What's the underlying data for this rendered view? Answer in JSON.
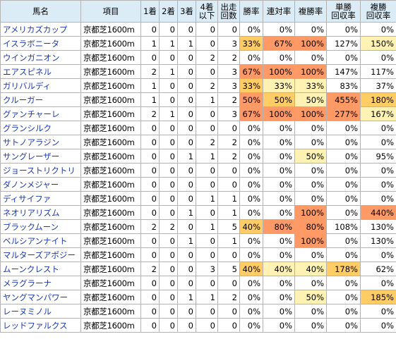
{
  "headers": [
    "馬名",
    "項目",
    "1着",
    "2着",
    "3着",
    "4着以下",
    "出走回数",
    "勝率",
    "連対率",
    "複勝率",
    "単勝回収率",
    "複勝回収率"
  ],
  "header_lines": [
    [
      "馬名"
    ],
    [
      "項目"
    ],
    [
      "1着"
    ],
    [
      "2着"
    ],
    [
      "3着"
    ],
    [
      "4着",
      "以下"
    ],
    [
      "出走",
      "回数"
    ],
    [
      "勝率"
    ],
    [
      "連対率"
    ],
    [
      "複勝率"
    ],
    [
      "単勝",
      "回収率"
    ],
    [
      "複勝",
      "回収率"
    ]
  ],
  "highlight_colors": {
    "strong": "#ff9966",
    "mid": "#ffcc66",
    "light": "#fff2b3"
  },
  "rows": [
    {
      "name": "アメリカズカップ",
      "course": "京都芝1600m",
      "c1": "0",
      "c2": "0",
      "c3": "0",
      "c4": "0",
      "runs": "0",
      "win": "0%",
      "ren": "0%",
      "fuku": "0%",
      "tan_ret": "0%",
      "fuku_ret": "0%",
      "hl": [
        "",
        "",
        "",
        "",
        ""
      ]
    },
    {
      "name": "イスラボニータ",
      "course": "京都芝1600m",
      "c1": "1",
      "c2": "1",
      "c3": "1",
      "c4": "0",
      "runs": "3",
      "win": "33%",
      "ren": "67%",
      "fuku": "100%",
      "tan_ret": "127%",
      "fuku_ret": "150%",
      "hl": [
        "mid",
        "strong",
        "strong",
        "",
        "light"
      ]
    },
    {
      "name": "ウインガニオン",
      "course": "京都芝1600m",
      "c1": "0",
      "c2": "0",
      "c3": "0",
      "c4": "2",
      "runs": "2",
      "win": "0%",
      "ren": "0%",
      "fuku": "0%",
      "tan_ret": "0%",
      "fuku_ret": "0%",
      "hl": [
        "",
        "",
        "",
        "",
        ""
      ]
    },
    {
      "name": "エアスピネル",
      "course": "京都芝1600m",
      "c1": "2",
      "c2": "1",
      "c3": "0",
      "c4": "0",
      "runs": "3",
      "win": "67%",
      "ren": "100%",
      "fuku": "100%",
      "tan_ret": "147%",
      "fuku_ret": "117%",
      "hl": [
        "strong",
        "strong",
        "strong",
        "",
        ""
      ]
    },
    {
      "name": "ガリバルディ",
      "course": "京都芝1600m",
      "c1": "1",
      "c2": "0",
      "c3": "0",
      "c4": "2",
      "runs": "3",
      "win": "33%",
      "ren": "33%",
      "fuku": "33%",
      "tan_ret": "83%",
      "fuku_ret": "37%",
      "hl": [
        "mid",
        "light",
        "light",
        "",
        ""
      ]
    },
    {
      "name": "クルーガー",
      "course": "京都芝1600m",
      "c1": "1",
      "c2": "0",
      "c3": "0",
      "c4": "1",
      "runs": "2",
      "win": "50%",
      "ren": "50%",
      "fuku": "50%",
      "tan_ret": "455%",
      "fuku_ret": "180%",
      "hl": [
        "strong",
        "mid",
        "light",
        "strong",
        "mid"
      ]
    },
    {
      "name": "グァンチャーレ",
      "course": "京都芝1600m",
      "c1": "2",
      "c2": "1",
      "c3": "0",
      "c4": "0",
      "runs": "3",
      "win": "67%",
      "ren": "100%",
      "fuku": "100%",
      "tan_ret": "277%",
      "fuku_ret": "167%",
      "hl": [
        "strong",
        "strong",
        "strong",
        "strong",
        "light"
      ]
    },
    {
      "name": "グランシルク",
      "course": "京都芝1600m",
      "c1": "0",
      "c2": "0",
      "c3": "0",
      "c4": "0",
      "runs": "0",
      "win": "0%",
      "ren": "0%",
      "fuku": "0%",
      "tan_ret": "0%",
      "fuku_ret": "0%",
      "hl": [
        "",
        "",
        "",
        "",
        ""
      ]
    },
    {
      "name": "サトノアラジン",
      "course": "京都芝1600m",
      "c1": "0",
      "c2": "0",
      "c3": "0",
      "c4": "2",
      "runs": "2",
      "win": "0%",
      "ren": "0%",
      "fuku": "0%",
      "tan_ret": "0%",
      "fuku_ret": "0%",
      "hl": [
        "",
        "",
        "",
        "",
        ""
      ]
    },
    {
      "name": "サングレーザー",
      "course": "京都芝1600m",
      "c1": "0",
      "c2": "0",
      "c3": "1",
      "c4": "1",
      "runs": "2",
      "win": "0%",
      "ren": "0%",
      "fuku": "50%",
      "tan_ret": "0%",
      "fuku_ret": "95%",
      "hl": [
        "",
        "",
        "light",
        "",
        ""
      ]
    },
    {
      "name": "ジョーストリクトリ",
      "course": "京都芝1600m",
      "c1": "0",
      "c2": "0",
      "c3": "0",
      "c4": "0",
      "runs": "0",
      "win": "0%",
      "ren": "0%",
      "fuku": "0%",
      "tan_ret": "0%",
      "fuku_ret": "0%",
      "hl": [
        "",
        "",
        "",
        "",
        ""
      ]
    },
    {
      "name": "ダノンメジャー",
      "course": "京都芝1600m",
      "c1": "0",
      "c2": "0",
      "c3": "0",
      "c4": "0",
      "runs": "0",
      "win": "0%",
      "ren": "0%",
      "fuku": "0%",
      "tan_ret": "0%",
      "fuku_ret": "0%",
      "hl": [
        "",
        "",
        "",
        "",
        ""
      ]
    },
    {
      "name": "ディサイファ",
      "course": "京都芝1600m",
      "c1": "0",
      "c2": "0",
      "c3": "0",
      "c4": "1",
      "runs": "1",
      "win": "0%",
      "ren": "0%",
      "fuku": "0%",
      "tan_ret": "0%",
      "fuku_ret": "0%",
      "hl": [
        "",
        "",
        "",
        "",
        ""
      ]
    },
    {
      "name": "ネオリアリズム",
      "course": "京都芝1600m",
      "c1": "0",
      "c2": "0",
      "c3": "1",
      "c4": "0",
      "runs": "1",
      "win": "0%",
      "ren": "0%",
      "fuku": "100%",
      "tan_ret": "0%",
      "fuku_ret": "440%",
      "hl": [
        "",
        "",
        "strong",
        "",
        "strong"
      ]
    },
    {
      "name": "ブラックムーン",
      "course": "京都芝1600m",
      "c1": "2",
      "c2": "2",
      "c3": "0",
      "c4": "1",
      "runs": "5",
      "win": "40%",
      "ren": "80%",
      "fuku": "80%",
      "tan_ret": "108%",
      "fuku_ret": "130%",
      "hl": [
        "mid",
        "strong",
        "strong",
        "",
        ""
      ]
    },
    {
      "name": "ベルシアンナイト",
      "course": "京都芝1600m",
      "c1": "0",
      "c2": "0",
      "c3": "1",
      "c4": "0",
      "runs": "1",
      "win": "0%",
      "ren": "0%",
      "fuku": "100%",
      "tan_ret": "0%",
      "fuku_ret": "130%",
      "hl": [
        "",
        "",
        "strong",
        "",
        ""
      ]
    },
    {
      "name": "マルターズアポジー",
      "course": "京都芝1600m",
      "c1": "0",
      "c2": "0",
      "c3": "0",
      "c4": "0",
      "runs": "0",
      "win": "0%",
      "ren": "0%",
      "fuku": "0%",
      "tan_ret": "0%",
      "fuku_ret": "0%",
      "hl": [
        "",
        "",
        "",
        "",
        ""
      ]
    },
    {
      "name": "ムーンクレスト",
      "course": "京都芝1600m",
      "c1": "2",
      "c2": "0",
      "c3": "0",
      "c4": "3",
      "runs": "5",
      "win": "40%",
      "ren": "40%",
      "fuku": "40%",
      "tan_ret": "178%",
      "fuku_ret": "62%",
      "hl": [
        "mid",
        "light",
        "light",
        "mid",
        ""
      ]
    },
    {
      "name": "メラグラーナ",
      "course": "京都芝1600m",
      "c1": "0",
      "c2": "0",
      "c3": "0",
      "c4": "0",
      "runs": "0",
      "win": "0%",
      "ren": "0%",
      "fuku": "0%",
      "tan_ret": "0%",
      "fuku_ret": "0%",
      "hl": [
        "",
        "",
        "",
        "",
        ""
      ]
    },
    {
      "name": "ヤングマンパワー",
      "course": "京都芝1600m",
      "c1": "0",
      "c2": "0",
      "c3": "1",
      "c4": "1",
      "runs": "2",
      "win": "0%",
      "ren": "0%",
      "fuku": "50%",
      "tan_ret": "0%",
      "fuku_ret": "185%",
      "hl": [
        "",
        "",
        "light",
        "",
        "mid"
      ]
    },
    {
      "name": "レーヌミノル",
      "course": "京都芝1600m",
      "c1": "0",
      "c2": "0",
      "c3": "0",
      "c4": "0",
      "runs": "0",
      "win": "0%",
      "ren": "0%",
      "fuku": "0%",
      "tan_ret": "0%",
      "fuku_ret": "0%",
      "hl": [
        "",
        "",
        "",
        "",
        ""
      ]
    },
    {
      "name": "レッドファルクス",
      "course": "京都芝1600m",
      "c1": "0",
      "c2": "0",
      "c3": "0",
      "c4": "0",
      "runs": "0",
      "win": "0%",
      "ren": "0%",
      "fuku": "0%",
      "tan_ret": "0%",
      "fuku_ret": "0%",
      "hl": [
        "",
        "",
        "",
        "",
        ""
      ]
    }
  ]
}
